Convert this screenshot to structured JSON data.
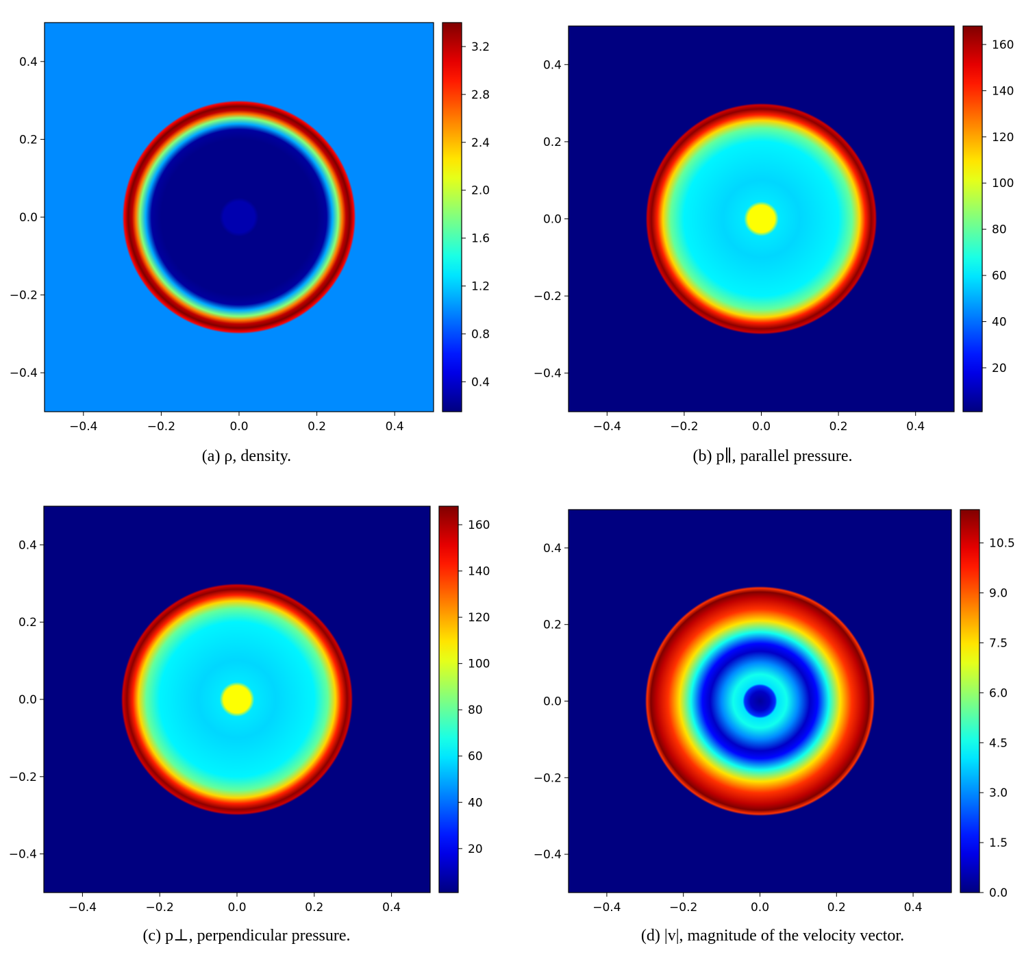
{
  "chart_data": [
    {
      "type": "heatmap",
      "caption": "(a) ρ, density.",
      "xlim": [
        -0.5,
        0.5
      ],
      "ylim": [
        -0.5,
        0.5
      ],
      "x_ticks": [
        "−0.4",
        "−0.2",
        "0.0",
        "0.2",
        "0.4"
      ],
      "y_ticks": [
        "0.4",
        "0.2",
        "0.0",
        "−0.2",
        "−0.4"
      ],
      "colorbar": {
        "min": 0.15,
        "max": 3.4,
        "ticks": [
          0.4,
          0.8,
          1.2,
          1.6,
          2.0,
          2.4,
          2.8,
          3.2
        ],
        "tick_labels": [
          "0.4",
          "0.8",
          "1.2",
          "1.6",
          "2.0",
          "2.4",
          "2.8",
          "3.2"
        ]
      },
      "background_value": 1.0,
      "radial_profile": [
        [
          0.0,
          0.3
        ],
        [
          0.04,
          0.3
        ],
        [
          0.05,
          0.18
        ],
        [
          0.2,
          0.18
        ],
        [
          0.225,
          0.25
        ],
        [
          0.24,
          1.1
        ],
        [
          0.255,
          1.8
        ],
        [
          0.265,
          2.6
        ],
        [
          0.275,
          3.2
        ],
        [
          0.285,
          3.4
        ],
        [
          0.295,
          3.0
        ],
        [
          0.3,
          1.0
        ]
      ]
    },
    {
      "type": "heatmap",
      "caption": "(b) p∥, parallel pressure.",
      "xlim": [
        -0.5,
        0.5
      ],
      "ylim": [
        -0.5,
        0.5
      ],
      "x_ticks": [
        "−0.4",
        "−0.2",
        "0.0",
        "0.2",
        "0.4"
      ],
      "y_ticks": [
        "0.4",
        "0.2",
        "0.0",
        "−0.2",
        "−0.4"
      ],
      "colorbar": {
        "min": 1,
        "max": 168,
        "ticks": [
          20,
          40,
          60,
          80,
          100,
          120,
          140,
          160
        ],
        "tick_labels": [
          "20",
          "40",
          "60",
          "80",
          "100",
          "120",
          "140",
          "160"
        ]
      },
      "background_value": 1,
      "radial_profile": [
        [
          0.0,
          105
        ],
        [
          0.035,
          105
        ],
        [
          0.045,
          60
        ],
        [
          0.1,
          57
        ],
        [
          0.2,
          62
        ],
        [
          0.235,
          80
        ],
        [
          0.255,
          112
        ],
        [
          0.27,
          142
        ],
        [
          0.285,
          166
        ],
        [
          0.295,
          155
        ],
        [
          0.3,
          1
        ]
      ]
    },
    {
      "type": "heatmap",
      "caption": "(c) p⊥, perpendicular pressure.",
      "xlim": [
        -0.5,
        0.5
      ],
      "ylim": [
        -0.5,
        0.5
      ],
      "x_ticks": [
        "−0.4",
        "−0.2",
        "0.0",
        "0.2",
        "0.4"
      ],
      "y_ticks": [
        "0.4",
        "0.2",
        "0.0",
        "−0.2",
        "−0.4"
      ],
      "colorbar": {
        "min": 1,
        "max": 168,
        "ticks": [
          20,
          40,
          60,
          80,
          100,
          120,
          140,
          160
        ],
        "tick_labels": [
          "20",
          "40",
          "60",
          "80",
          "100",
          "120",
          "140",
          "160"
        ]
      },
      "background_value": 1,
      "radial_profile": [
        [
          0.0,
          105
        ],
        [
          0.035,
          105
        ],
        [
          0.045,
          60
        ],
        [
          0.1,
          57
        ],
        [
          0.2,
          62
        ],
        [
          0.235,
          80
        ],
        [
          0.255,
          112
        ],
        [
          0.27,
          142
        ],
        [
          0.285,
          166
        ],
        [
          0.295,
          155
        ],
        [
          0.3,
          1
        ]
      ]
    },
    {
      "type": "heatmap",
      "caption": "(d) |v|, magnitude of the velocity vector.",
      "xlim": [
        -0.5,
        0.5
      ],
      "ylim": [
        -0.5,
        0.5
      ],
      "x_ticks": [
        "−0.4",
        "−0.2",
        "0.0",
        "0.2",
        "0.4"
      ],
      "y_ticks": [
        "0.4",
        "0.2",
        "0.0",
        "−0.2",
        "−0.4"
      ],
      "colorbar": {
        "min": 0.0,
        "max": 11.5,
        "ticks": [
          0.0,
          1.5,
          3.0,
          4.5,
          6.0,
          7.5,
          9.0,
          10.5
        ],
        "tick_labels": [
          "0.0",
          "1.5",
          "3.0",
          "4.5",
          "6.0",
          "7.5",
          "9.0",
          "10.5"
        ]
      },
      "background_value": 0.0,
      "radial_profile": [
        [
          0.0,
          0.3
        ],
        [
          0.025,
          0.8
        ],
        [
          0.04,
          2.0
        ],
        [
          0.045,
          4.0
        ],
        [
          0.07,
          4.5
        ],
        [
          0.1,
          3.0
        ],
        [
          0.13,
          0.8
        ],
        [
          0.15,
          1.5
        ],
        [
          0.18,
          4.5
        ],
        [
          0.21,
          7.5
        ],
        [
          0.24,
          9.5
        ],
        [
          0.27,
          10.8
        ],
        [
          0.285,
          11.5
        ],
        [
          0.295,
          9.5
        ],
        [
          0.3,
          0.0
        ]
      ]
    }
  ]
}
